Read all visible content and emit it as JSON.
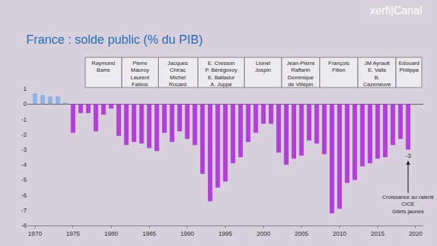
{
  "chart_data": {
    "type": "bar",
    "title": "France : solde public (% du PIB)",
    "logo": "xerfi|Canal",
    "x": [
      1970,
      1971,
      1972,
      1973,
      1974,
      1975,
      1976,
      1977,
      1978,
      1979,
      1980,
      1981,
      1982,
      1983,
      1984,
      1985,
      1986,
      1987,
      1988,
      1989,
      1990,
      1991,
      1992,
      1993,
      1994,
      1995,
      1996,
      1997,
      1998,
      1999,
      2000,
      2001,
      2002,
      2003,
      2004,
      2005,
      2006,
      2007,
      2008,
      2009,
      2010,
      2011,
      2012,
      2013,
      2014,
      2015,
      2016,
      2017,
      2018,
      2019
    ],
    "values": [
      0.7,
      0.6,
      0.5,
      0.5,
      0.1,
      -1.9,
      -0.6,
      -0.6,
      -1.8,
      -0.7,
      -0.3,
      -2.1,
      -2.7,
      -2.5,
      -2.6,
      -2.9,
      -3.1,
      -1.9,
      -2.5,
      -1.8,
      -2.3,
      -2.7,
      -4.6,
      -6.4,
      -5.5,
      -5.1,
      -3.9,
      -3.5,
      -2.5,
      -1.9,
      -1.3,
      -1.3,
      -3.2,
      -4.0,
      -3.6,
      -3.4,
      -2.4,
      -2.6,
      -3.3,
      -7.2,
      -6.9,
      -5.2,
      -5.0,
      -4.1,
      -3.9,
      -3.6,
      -3.5,
      -2.7,
      -2.3,
      -3.0
    ],
    "colors": [
      "#8fb4e3",
      "#8fb4e3",
      "#8fb4e3",
      "#8fb4e3",
      "#8fb4e3",
      "#b23fd8",
      "#b23fd8",
      "#b23fd8",
      "#b23fd8",
      "#b23fd8",
      "#b23fd8",
      "#b23fd8",
      "#b23fd8",
      "#b23fd8",
      "#b23fd8",
      "#b23fd8",
      "#b23fd8",
      "#b23fd8",
      "#b23fd8",
      "#b23fd8",
      "#b23fd8",
      "#b23fd8",
      "#b23fd8",
      "#b23fd8",
      "#b23fd8",
      "#b23fd8",
      "#b23fd8",
      "#b23fd8",
      "#b23fd8",
      "#b23fd8",
      "#b23fd8",
      "#b23fd8",
      "#b23fd8",
      "#b23fd8",
      "#b23fd8",
      "#b23fd8",
      "#b23fd8",
      "#b23fd8",
      "#b23fd8",
      "#b23fd8",
      "#b23fd8",
      "#b23fd8",
      "#b23fd8",
      "#b23fd8",
      "#b23fd8",
      "#b23fd8",
      "#b23fd8",
      "#b23fd8",
      "#b23fd8",
      "#b23fd8"
    ],
    "xlim": [
      1969,
      2021
    ],
    "xticks": [
      1970,
      1975,
      1980,
      1985,
      1990,
      1995,
      2000,
      2005,
      2010,
      2015,
      2020
    ],
    "ylim": [
      -8,
      1
    ],
    "yticks": [
      -8,
      -7,
      -6,
      -5,
      -4,
      -3,
      -2,
      -1,
      0,
      1
    ],
    "grid": false,
    "periods": [
      {
        "start": 1976.6,
        "end": 1981.4,
        "lines": [
          "Raymond",
          "Barre"
        ]
      },
      {
        "start": 1981.4,
        "end": 1986.2,
        "lines": [
          "Pierre",
          "Mauroy",
          "Laurent",
          "Fabius"
        ]
      },
      {
        "start": 1986.2,
        "end": 1991.4,
        "lines": [
          "Jacques",
          "Chirac",
          "Michel",
          "Rocard"
        ]
      },
      {
        "start": 1991.4,
        "end": 1997.5,
        "lines": [
          "E. Cresson",
          "P. Bérégovoy",
          "E. Balladur",
          "A. Juppé"
        ]
      },
      {
        "start": 1997.5,
        "end": 2002.4,
        "lines": [
          "Lionel",
          "Jospin"
        ]
      },
      {
        "start": 2002.4,
        "end": 2007.4,
        "lines": [
          "Jean-Pierre",
          "Raffarin",
          "Dominique",
          "de Villepin"
        ]
      },
      {
        "start": 2007.4,
        "end": 2012.4,
        "lines": [
          "François",
          "Fillon"
        ]
      },
      {
        "start": 2012.4,
        "end": 2017.4,
        "lines": [
          "JM Ayrault",
          "E. Valls",
          "B.",
          "Cazeneuve"
        ]
      },
      {
        "start": 2017.4,
        "end": 2020.8,
        "lines": [
          "Edouard",
          "Philippe"
        ]
      }
    ],
    "annotations": [
      {
        "x": 2019,
        "y": -3,
        "text": [
          "-3"
        ]
      },
      {
        "x": 2019,
        "y": -3,
        "text": [
          "Croissance au ralenti",
          "CICE",
          "Gilets jaunes"
        ],
        "arrow": true
      }
    ]
  }
}
